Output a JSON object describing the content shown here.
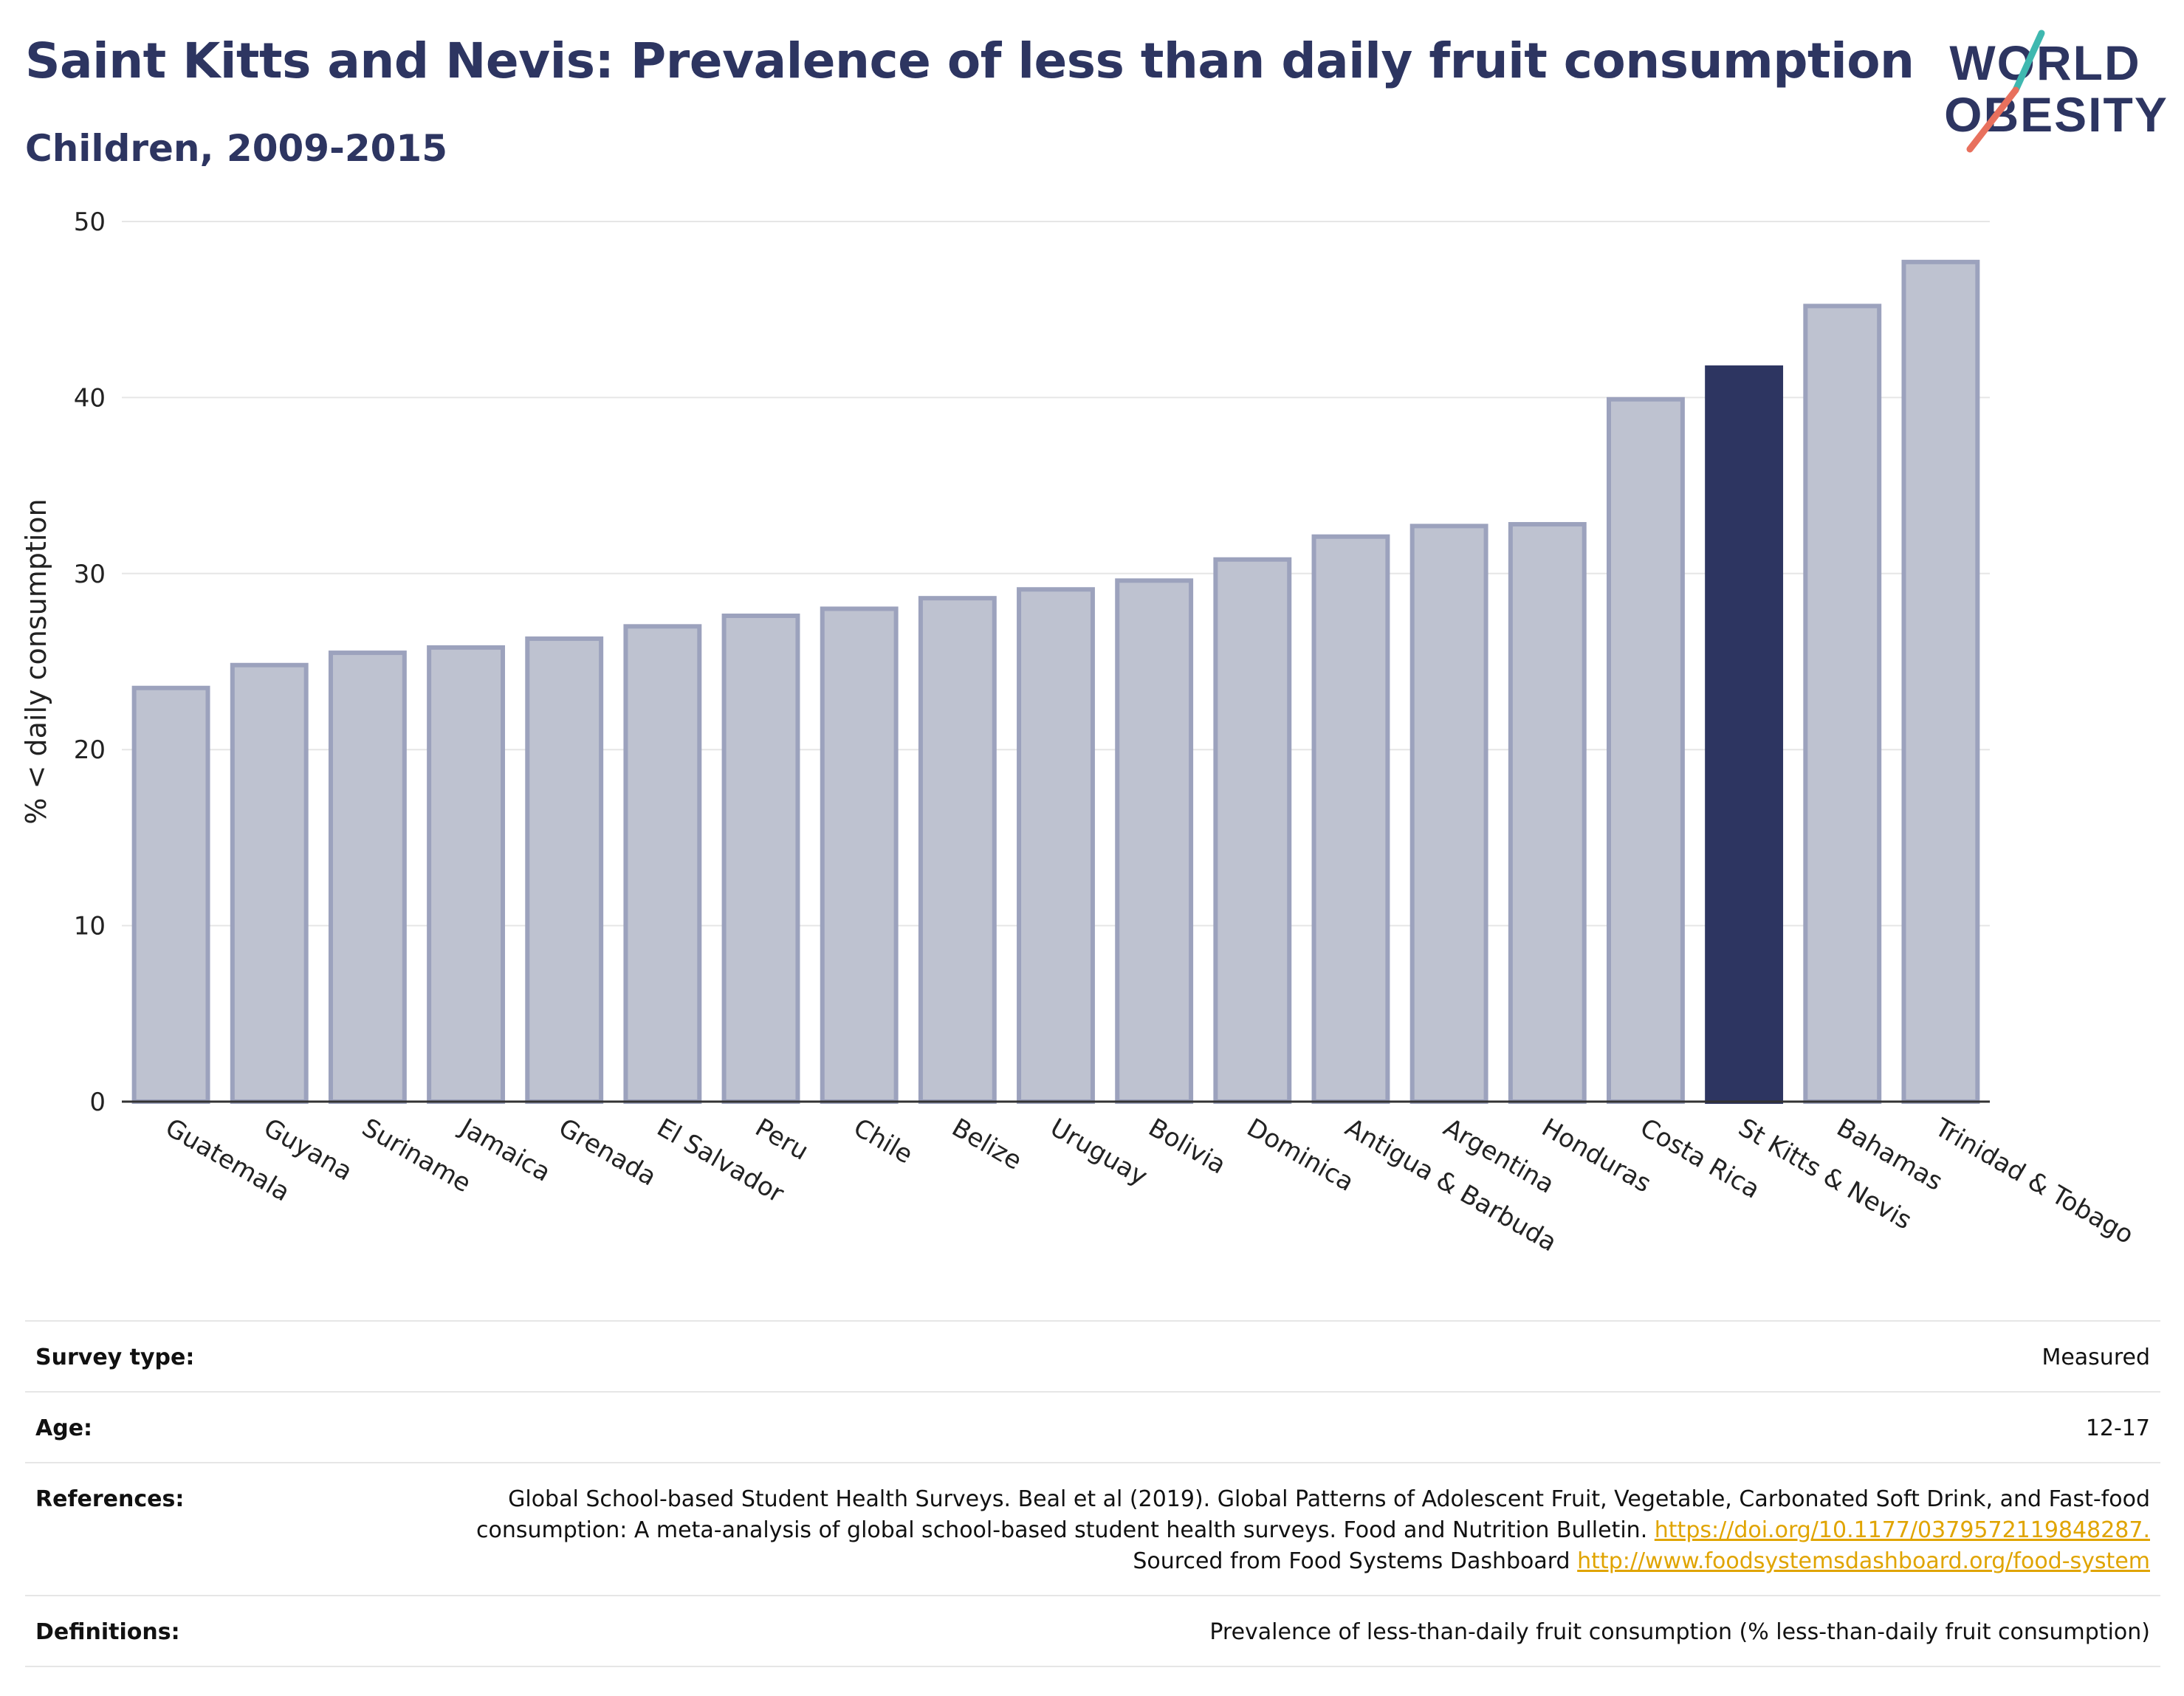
{
  "header": {
    "title": "Saint Kitts and Nevis: Prevalence of less than daily fruit consumption",
    "subtitle": "Children, 2009-2015"
  },
  "logo": {
    "line1": "WORLD",
    "line2": "OBESITY"
  },
  "colors": {
    "highlight": "#2d3561",
    "bar_fill": "#bec2d0",
    "bar_stroke": "#9ca2bd",
    "grid": "#e6e6e6",
    "logo_text": "#2d3561",
    "logo_teal": "#3fb8b0",
    "logo_coral": "#e8705d",
    "link": "#e0a400"
  },
  "chart_data": {
    "type": "bar",
    "title": "",
    "ylabel": "% < daily consumption",
    "xlabel": "",
    "ylim": [
      0,
      50
    ],
    "yticks": [
      0,
      10,
      20,
      30,
      40,
      50
    ],
    "grid": true,
    "legend": "none",
    "highlight": "St Kitts & Nevis",
    "categories": [
      "Guatemala",
      "Guyana",
      "Suriname",
      "Jamaica",
      "Grenada",
      "El Salvador",
      "Peru",
      "Chile",
      "Belize",
      "Uruguay",
      "Bolivia",
      "Dominica",
      "Antigua & Barbuda",
      "Argentina",
      "Honduras",
      "Costa Rica",
      "St Kitts & Nevis",
      "Bahamas",
      "Trinidad & Tobago"
    ],
    "values": [
      23.5,
      24.8,
      25.5,
      25.8,
      26.3,
      27.0,
      27.6,
      28.0,
      28.6,
      29.1,
      29.6,
      30.8,
      32.1,
      32.7,
      32.8,
      39.9,
      41.7,
      45.2,
      47.7
    ]
  },
  "info": {
    "survey_type": {
      "label": "Survey type:",
      "value": "Measured"
    },
    "age": {
      "label": "Age:",
      "value": "12-17"
    },
    "references": {
      "label": "References:",
      "text1": "Global School-based Student Health Surveys. Beal et al (2019). Global Patterns of Adolescent Fruit, Vegetable, Carbonated Soft Drink, and Fast-food consumption: A meta-analysis of global school-based student health surveys. Food and Nutrition Bulletin.",
      "link1": "https://doi.org/10.1177/0379572119848287.",
      "text2": "Sourced from Food Systems Dashboard",
      "link2": "http://www.foodsystemsdashboard.org/food-system"
    },
    "definitions": {
      "label": "Definitions:",
      "value": "Prevalence of less-than-daily fruit consumption (% less-than-daily fruit consumption)"
    }
  }
}
